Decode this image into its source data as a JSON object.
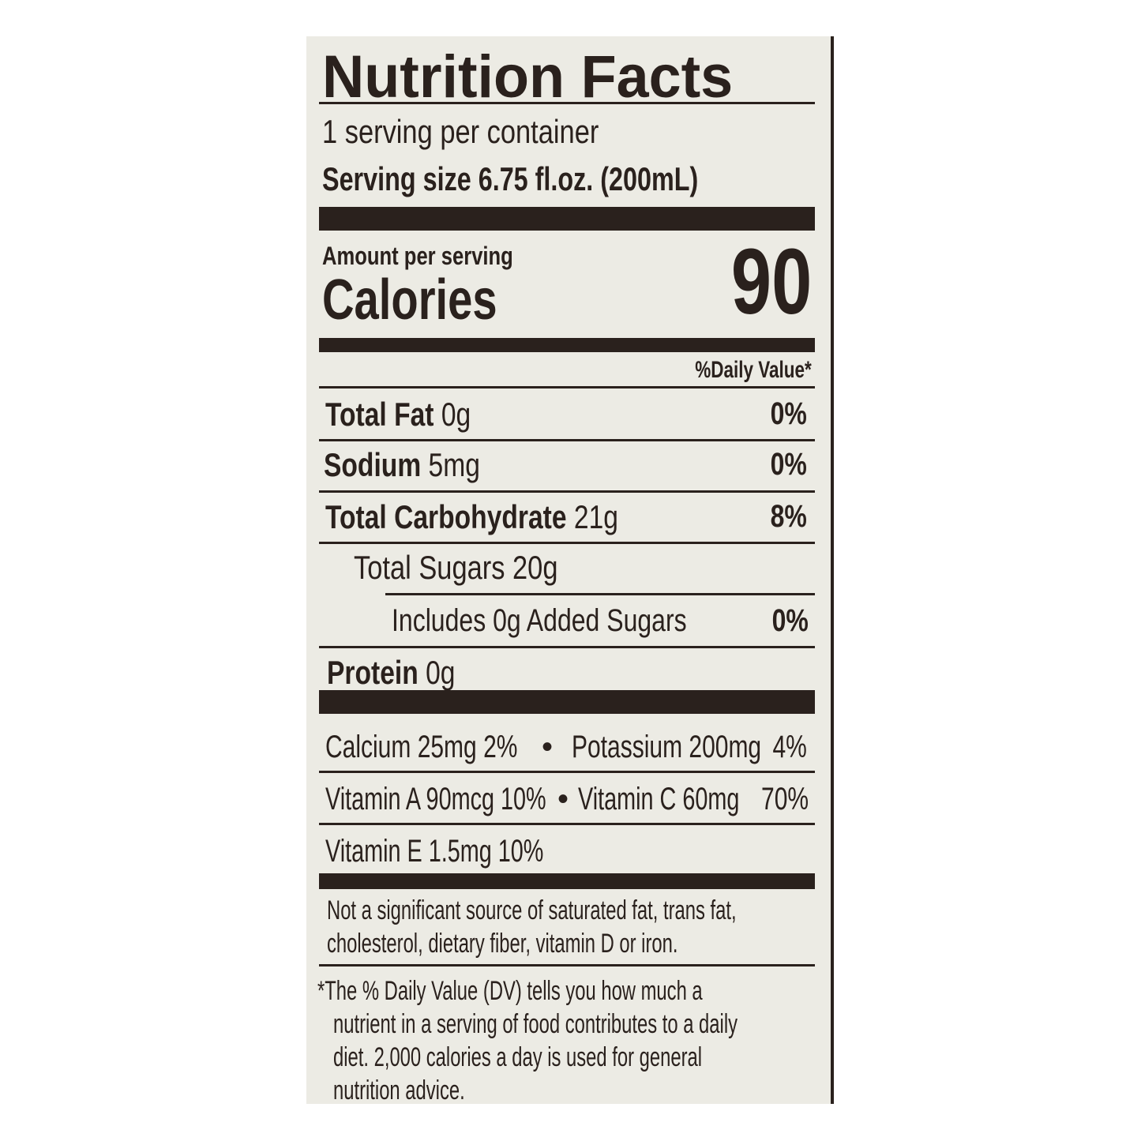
{
  "title": "Nutrition Facts",
  "servings_per_container": "1 serving per container",
  "serving_size": "Serving size  6.75 fl.oz. (200mL)",
  "amount_per_serving": "Amount per serving",
  "calories_label": "Calories",
  "calories_value": "90",
  "daily_value_header": "%Daily Value*",
  "nutrients": [
    {
      "name": "Total Fat",
      "amount": "0g",
      "dv": "0%"
    },
    {
      "name": "Sodium",
      "amount": "5mg",
      "dv": "0%"
    },
    {
      "name": "Total Carbohydrate",
      "amount": "21g",
      "dv": "8%"
    },
    {
      "name": "Total Sugars 20g",
      "amount": "",
      "dv": ""
    },
    {
      "name": "Includes 0g Added Sugars",
      "amount": "",
      "dv": "0%"
    },
    {
      "name": "Protein",
      "amount": "0g",
      "dv": ""
    }
  ],
  "vitamins": [
    {
      "left": "Calcium 25mg  2%",
      "sep": "•",
      "right": "Potassium 200mg",
      "right_dv": "4%"
    },
    {
      "left": "Vitamin A 90mcg 10%",
      "sep": "•",
      "right": "Vitamin C 60mg",
      "right_dv": "70%"
    },
    {
      "left": "Vitamin E 1.5mg   10%",
      "sep": "",
      "right": "",
      "right_dv": ""
    }
  ],
  "not_significant": [
    "Not a significant source of saturated fat, trans fat,",
    "cholesterol, dietary fiber, vitamin D or iron."
  ],
  "footnote": [
    "*The % Daily Value (DV) tells you how much a",
    "nutrient in a serving of food contributes to a daily",
    "diet. 2,000 calories a day is used for general",
    "nutrition advice."
  ],
  "colors": {
    "ink": "#2a211d",
    "paper": "#ecebe4"
  }
}
